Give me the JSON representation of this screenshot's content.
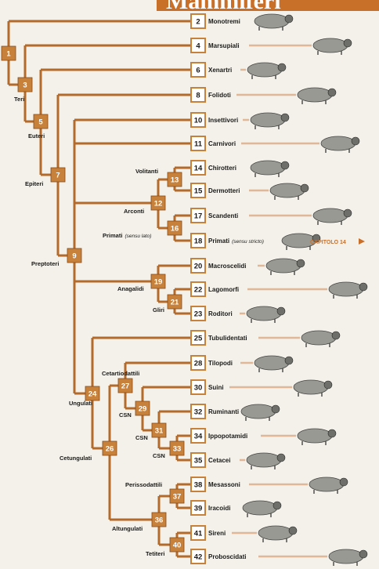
{
  "title": "Mammiferi",
  "colors": {
    "branch": "#b46a2a",
    "box": "#c7813a",
    "box_light": "#ffffff",
    "text": "#1c1a18",
    "banner": "#c8702a",
    "background": "#f3f1ea",
    "guide": "#e0b898"
  },
  "tip_groups": [
    {
      "id": "2",
      "label": "Monotremi",
      "animal": "platypus-icon"
    },
    {
      "id": "4",
      "label": "Marsupiali",
      "animal": "quoll-icon"
    },
    {
      "id": "6",
      "label": "Xenartri",
      "animal": "anteater-icon"
    },
    {
      "id": "8",
      "label": "Folidoti",
      "animal": "pangolin-icon"
    },
    {
      "id": "10",
      "label": "Insettivori",
      "animal": "shrew-icon"
    },
    {
      "id": "11",
      "label": "Carnivori",
      "animal": "walrus-icon"
    },
    {
      "id": "14",
      "label": "Chirotteri",
      "animal": "bat-icon"
    },
    {
      "id": "15",
      "label": "Dermotteri",
      "animal": "colugo-icon"
    },
    {
      "id": "17",
      "label": "Scandenti",
      "animal": "treeshrew-icon"
    },
    {
      "id": "18",
      "label": "Primati",
      "label_suffix": "(sensu stricto)",
      "animal": "monkey-icon"
    },
    {
      "id": "20",
      "label": "Macroscelidi",
      "animal": "elephant-shrew-icon"
    },
    {
      "id": "22",
      "label": "Lagomorfi",
      "animal": "hare-icon"
    },
    {
      "id": "23",
      "label": "Roditori",
      "animal": "porcupine-icon"
    },
    {
      "id": "25",
      "label": "Tubulidentati",
      "animal": "aardvark-icon"
    },
    {
      "id": "28",
      "label": "Tilopodi",
      "animal": "camel-icon"
    },
    {
      "id": "30",
      "label": "Suini",
      "animal": "boar-icon"
    },
    {
      "id": "32",
      "label": "Ruminanti",
      "animal": "okapi-icon"
    },
    {
      "id": "34",
      "label": "Ippopotamidi",
      "animal": "hippo-icon"
    },
    {
      "id": "35",
      "label": "Cetacei",
      "animal": "whale-icon"
    },
    {
      "id": "38",
      "label": "Mesassoni",
      "animal": "rhino-icon"
    },
    {
      "id": "39",
      "label": "Iracoidi",
      "animal": "hyrax-icon"
    },
    {
      "id": "41",
      "label": "Sireni",
      "animal": "manatee-icon"
    },
    {
      "id": "42",
      "label": "Proboscidati",
      "animal": "elephant-icon"
    }
  ],
  "nodes": [
    {
      "id": "1"
    },
    {
      "id": "3",
      "name": "Teri"
    },
    {
      "id": "5",
      "name": "Euteri"
    },
    {
      "id": "7",
      "name": "Epiteri"
    },
    {
      "id": "9",
      "name": "Preptoteri"
    },
    {
      "id": "12",
      "name": "Arconti"
    },
    {
      "id": "13",
      "name": "Volitanti"
    },
    {
      "id": "16",
      "name": "Primati",
      "name_suffix": "(sensu lato)"
    },
    {
      "id": "19",
      "name": "Anagalidi"
    },
    {
      "id": "21",
      "name": "Gliri"
    },
    {
      "id": "24",
      "name": "Ungulati"
    },
    {
      "id": "26",
      "name": "Cetungulati"
    },
    {
      "id": "27",
      "name": "Cetartiodattili"
    },
    {
      "id": "29",
      "name": "CSN"
    },
    {
      "id": "31",
      "name": "CSN"
    },
    {
      "id": "33",
      "name": "CSN"
    },
    {
      "id": "36",
      "name": "Altungulati"
    },
    {
      "id": "37",
      "name": "Perissodattili"
    },
    {
      "id": "40",
      "name": "Tetiteri"
    }
  ],
  "chapter_link": "CAPITOLO 14"
}
